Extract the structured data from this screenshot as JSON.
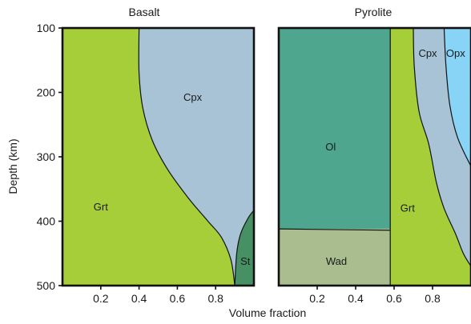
{
  "chart_data": [
    {
      "type": "area",
      "title": "Basalt",
      "xlabel": "Volume fraction",
      "ylabel": "Depth (km)",
      "xlim": [
        0.0,
        1.0
      ],
      "ylim": [
        100,
        500
      ],
      "y_inverted": true,
      "xticks": [
        0.2,
        0.4,
        0.6,
        0.8
      ],
      "yticks": [
        100,
        200,
        300,
        400,
        500
      ],
      "regions": [
        {
          "name": "Grt",
          "color": "#a6ce39"
        },
        {
          "name": "Cpx",
          "color": "#a8c3d6"
        },
        {
          "name": "St",
          "color": "#479064"
        }
      ],
      "boundaries": [
        {
          "between": [
            "Grt",
            "Cpx"
          ],
          "points": [
            [
              0.4,
              100
            ],
            [
              0.4,
              170
            ],
            [
              0.42,
              225
            ],
            [
              0.47,
              275
            ],
            [
              0.55,
              320
            ],
            [
              0.66,
              365
            ],
            [
              0.76,
              400
            ],
            [
              0.83,
              425
            ],
            [
              0.88,
              460
            ],
            [
              0.9,
              500
            ]
          ]
        },
        {
          "between": [
            "Cpx",
            "St"
          ],
          "points": [
            [
              1.0,
              383
            ],
            [
              0.97,
              395
            ],
            [
              0.93,
              420
            ],
            [
              0.91,
              450
            ],
            [
              0.9,
              500
            ]
          ]
        }
      ]
    },
    {
      "type": "area",
      "title": "Pyrolite",
      "xlabel": "Volume fraction",
      "ylabel": "",
      "xlim": [
        0.0,
        1.0
      ],
      "ylim": [
        100,
        500
      ],
      "y_inverted": true,
      "xticks": [
        0.2,
        0.4,
        0.6,
        0.8
      ],
      "regions": [
        {
          "name": "Ol",
          "color": "#4ea68e"
        },
        {
          "name": "Wad",
          "color": "#a9bd8f"
        },
        {
          "name": "Grt",
          "color": "#a6ce39"
        },
        {
          "name": "Cpx",
          "color": "#a8c3d6"
        },
        {
          "name": "Opx",
          "color": "#88d4f7"
        }
      ],
      "boundaries": [
        {
          "between": [
            "Ol",
            "Wad"
          ],
          "points": [
            [
              0.0,
              412
            ],
            [
              0.58,
              414
            ]
          ]
        },
        {
          "between": [
            "Ol/Wad",
            "Grt"
          ],
          "points": [
            [
              0.58,
              100
            ],
            [
              0.58,
              500
            ]
          ]
        },
        {
          "between": [
            "Grt",
            "Cpx"
          ],
          "points": [
            [
              0.7,
              100
            ],
            [
              0.705,
              160
            ],
            [
              0.73,
              230
            ],
            [
              0.78,
              280
            ],
            [
              0.82,
              340
            ],
            [
              0.86,
              380
            ],
            [
              0.92,
              420
            ],
            [
              0.96,
              450
            ],
            [
              1.0,
              470
            ]
          ]
        },
        {
          "between": [
            "Cpx",
            "Opx"
          ],
          "points": [
            [
              0.86,
              100
            ],
            [
              0.87,
              160
            ],
            [
              0.89,
              220
            ],
            [
              0.93,
              270
            ],
            [
              1.0,
              315
            ]
          ]
        }
      ]
    }
  ]
}
